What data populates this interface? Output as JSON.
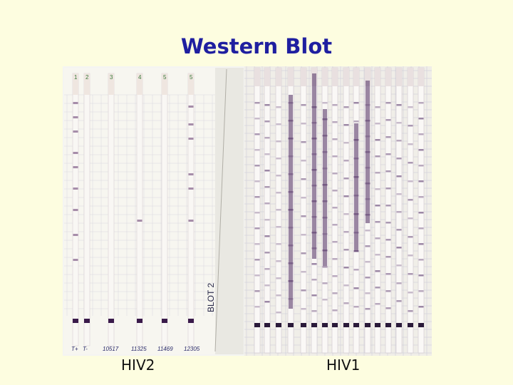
{
  "slide": {
    "title": "Western Blot",
    "caption_left": "HIV2",
    "caption_right": "HIV1"
  },
  "photo": {
    "description_labels": {
      "hiv2_lane_numbers": [
        "1",
        "2",
        "3",
        "4",
        "5",
        "5"
      ],
      "hiv2_bottom_labels": [
        "T+",
        "T-",
        "10517",
        "11325",
        "11469",
        "12305"
      ],
      "blot_label": "BLOT 2"
    }
  }
}
